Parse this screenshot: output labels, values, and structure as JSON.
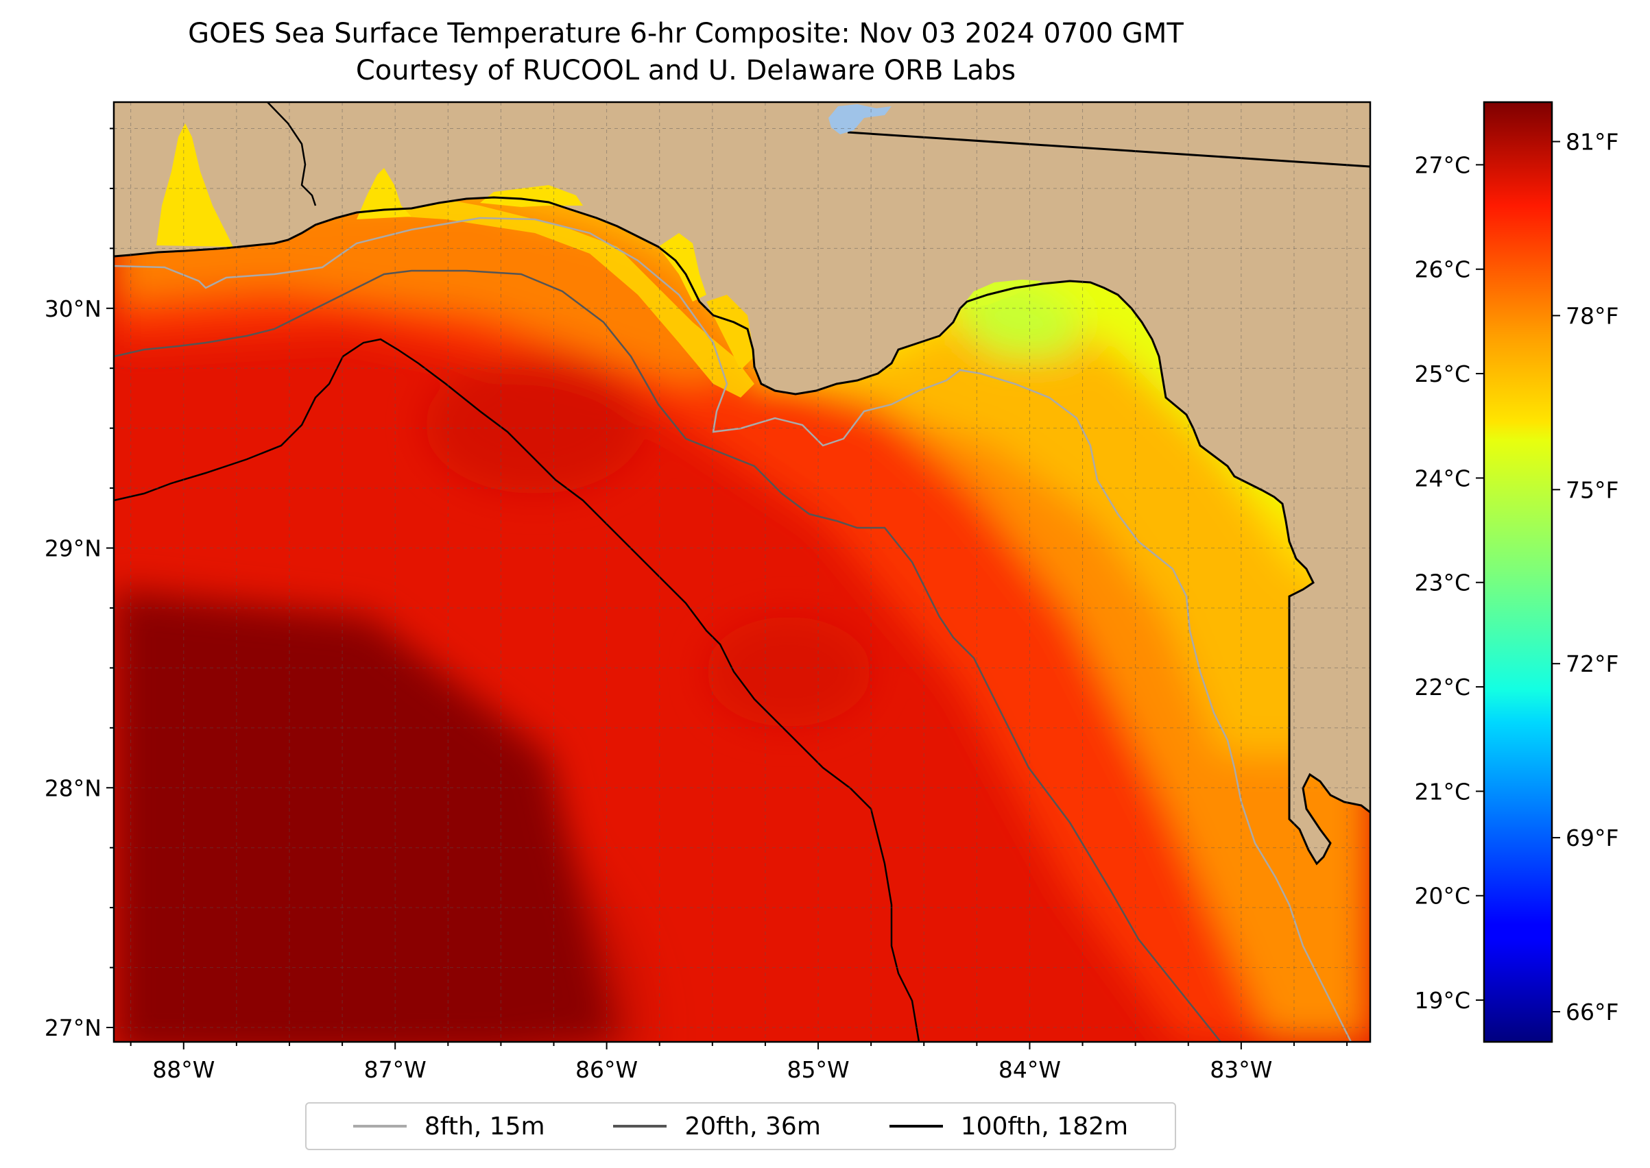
{
  "title": {
    "line1": "GOES Sea Surface Temperature 6-hr Composite: Nov 03 2024 0700 GMT",
    "line2": "Courtesy of RUCOOL and U. Delaware ORB Labs"
  },
  "map": {
    "extent": {
      "lon_min": -88.33,
      "lon_max": -82.39,
      "lat_min": 26.94,
      "lat_max": 30.86
    },
    "land_color": "#d2b48c",
    "lake_color": "#9fc3e8",
    "grid": true,
    "lat_ticks": [
      {
        "value": 30,
        "label": "30°N"
      },
      {
        "value": 29,
        "label": "29°N"
      },
      {
        "value": 28,
        "label": "28°N"
      },
      {
        "value": 27,
        "label": "27°N"
      }
    ],
    "lon_ticks": [
      {
        "value": -88,
        "label": "88°W"
      },
      {
        "value": -87,
        "label": "87°W"
      },
      {
        "value": -86,
        "label": "86°W"
      },
      {
        "value": -85,
        "label": "85°W"
      },
      {
        "value": -84,
        "label": "84°W"
      },
      {
        "value": -83,
        "label": "83°W"
      }
    ]
  },
  "colorbar": {
    "colormap": "jet",
    "c_min": 18.6,
    "c_max": 27.6,
    "celsius_ticks": [
      {
        "value": 19,
        "label": "19°C"
      },
      {
        "value": 20,
        "label": "20°C"
      },
      {
        "value": 21,
        "label": "21°C"
      },
      {
        "value": 22,
        "label": "22°C"
      },
      {
        "value": 23,
        "label": "23°C"
      },
      {
        "value": 24,
        "label": "24°C"
      },
      {
        "value": 25,
        "label": "25°C"
      },
      {
        "value": 26,
        "label": "26°C"
      },
      {
        "value": 27,
        "label": "27°C"
      }
    ],
    "fahrenheit_ticks": [
      {
        "value": 66,
        "label": "66°F"
      },
      {
        "value": 69,
        "label": "69°F"
      },
      {
        "value": 72,
        "label": "72°F"
      },
      {
        "value": 75,
        "label": "75°F"
      },
      {
        "value": 78,
        "label": "78°F"
      },
      {
        "value": 81,
        "label": "81°F"
      }
    ]
  },
  "legend": {
    "location": "bottom-center",
    "items": [
      {
        "label": "8fth, 15m",
        "color": "#aaaaaa"
      },
      {
        "label": "20fth, 36m",
        "color": "#555555"
      },
      {
        "label": "100fth, 182m",
        "color": "#000000"
      }
    ]
  }
}
